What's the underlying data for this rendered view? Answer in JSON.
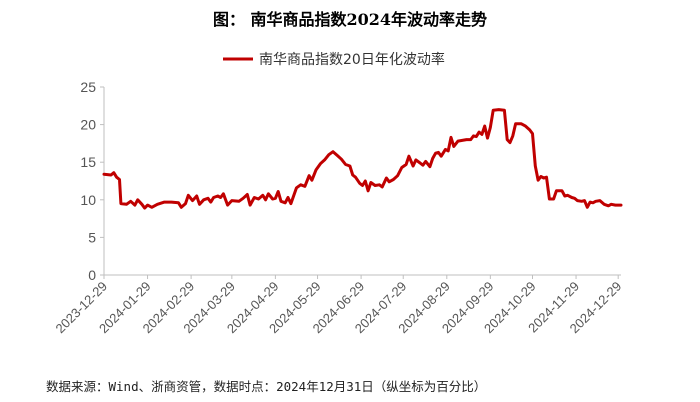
{
  "title": "图：  南华商品指数2024年波动率走势",
  "source": "数据来源：Wind、浙商资管，数据时点：2024年12月31日（纵坐标为百分比）",
  "colors": {
    "series": "#C00000",
    "axis": "#bfbfbf",
    "text": "#555555"
  },
  "chart_data": {
    "type": "line",
    "title": "",
    "xlabel": "",
    "ylabel": "",
    "ylim": [
      0,
      25
    ],
    "yticks": [
      0,
      5,
      10,
      15,
      20,
      25
    ],
    "grid": false,
    "legend_position": "top-center",
    "x_tick_labels": [
      "2023-12-29",
      "2024-01-29",
      "2024-02-29",
      "2024-03-29",
      "2024-04-29",
      "2024-05-29",
      "2024-06-29",
      "2024-07-29",
      "2024-08-29",
      "2024-09-29",
      "2024-10-29",
      "2024-11-29",
      "2024-12-29"
    ],
    "series": [
      {
        "name": "南华商品指数20日年化波动率",
        "color": "#C00000",
        "points": [
          [
            "2023-12-29",
            13.4
          ],
          [
            "2024-01-03",
            13.3
          ],
          [
            "2024-01-05",
            13.6
          ],
          [
            "2024-01-07",
            13.0
          ],
          [
            "2024-01-09",
            12.7
          ],
          [
            "2024-01-10",
            9.5
          ],
          [
            "2024-01-14",
            9.4
          ],
          [
            "2024-01-17",
            9.8
          ],
          [
            "2024-01-20",
            9.3
          ],
          [
            "2024-01-22",
            10.0
          ],
          [
            "2024-01-25",
            9.4
          ],
          [
            "2024-01-27",
            8.9
          ],
          [
            "2024-01-29",
            9.3
          ],
          [
            "2024-02-01",
            9.0
          ],
          [
            "2024-02-05",
            9.4
          ],
          [
            "2024-02-10",
            9.7
          ],
          [
            "2024-02-15",
            9.7
          ],
          [
            "2024-02-20",
            9.6
          ],
          [
            "2024-02-22",
            9.0
          ],
          [
            "2024-02-25",
            9.5
          ],
          [
            "2024-02-27",
            10.6
          ],
          [
            "2024-03-01",
            9.9
          ],
          [
            "2024-03-04",
            10.5
          ],
          [
            "2024-03-06",
            9.4
          ],
          [
            "2024-03-09",
            10.0
          ],
          [
            "2024-03-12",
            10.2
          ],
          [
            "2024-03-14",
            9.7
          ],
          [
            "2024-03-16",
            10.3
          ],
          [
            "2024-03-19",
            10.5
          ],
          [
            "2024-03-21",
            10.3
          ],
          [
            "2024-03-23",
            10.8
          ],
          [
            "2024-03-26",
            9.3
          ],
          [
            "2024-03-29",
            9.9
          ],
          [
            "2024-04-03",
            9.8
          ],
          [
            "2024-04-06",
            10.2
          ],
          [
            "2024-04-09",
            10.7
          ],
          [
            "2024-04-11",
            9.3
          ],
          [
            "2024-04-14",
            10.3
          ],
          [
            "2024-04-17",
            10.1
          ],
          [
            "2024-04-20",
            10.6
          ],
          [
            "2024-04-22",
            10.0
          ],
          [
            "2024-04-24",
            10.8
          ],
          [
            "2024-04-27",
            10.1
          ],
          [
            "2024-04-29",
            10.2
          ],
          [
            "2024-05-01",
            11.1
          ],
          [
            "2024-05-03",
            9.8
          ],
          [
            "2024-05-06",
            9.6
          ],
          [
            "2024-05-08",
            10.3
          ],
          [
            "2024-05-10",
            9.5
          ],
          [
            "2024-05-14",
            11.6
          ],
          [
            "2024-05-17",
            12.0
          ],
          [
            "2024-05-20",
            11.8
          ],
          [
            "2024-05-23",
            13.2
          ],
          [
            "2024-05-25",
            12.6
          ],
          [
            "2024-05-28",
            14.0
          ],
          [
            "2024-05-31",
            14.8
          ],
          [
            "2024-06-03",
            15.3
          ],
          [
            "2024-06-06",
            16.0
          ],
          [
            "2024-06-09",
            16.4
          ],
          [
            "2024-06-12",
            15.9
          ],
          [
            "2024-06-15",
            15.4
          ],
          [
            "2024-06-18",
            14.7
          ],
          [
            "2024-06-21",
            14.5
          ],
          [
            "2024-06-23",
            13.3
          ],
          [
            "2024-06-25",
            13.0
          ],
          [
            "2024-06-28",
            12.2
          ],
          [
            "2024-06-30",
            11.9
          ],
          [
            "2024-07-02",
            12.5
          ],
          [
            "2024-07-04",
            11.2
          ],
          [
            "2024-07-06",
            12.3
          ],
          [
            "2024-07-09",
            11.9
          ],
          [
            "2024-07-12",
            12.0
          ],
          [
            "2024-07-14",
            11.7
          ],
          [
            "2024-07-17",
            12.9
          ],
          [
            "2024-07-19",
            12.4
          ],
          [
            "2024-07-22",
            12.7
          ],
          [
            "2024-07-25",
            13.2
          ],
          [
            "2024-07-28",
            14.3
          ],
          [
            "2024-07-31",
            14.7
          ],
          [
            "2024-08-02",
            15.8
          ],
          [
            "2024-08-05",
            14.5
          ],
          [
            "2024-08-07",
            15.3
          ],
          [
            "2024-08-10",
            14.9
          ],
          [
            "2024-08-12",
            14.6
          ],
          [
            "2024-08-14",
            15.1
          ],
          [
            "2024-08-17",
            14.4
          ],
          [
            "2024-08-19",
            15.5
          ],
          [
            "2024-08-21",
            16.2
          ],
          [
            "2024-08-23",
            16.3
          ],
          [
            "2024-08-25",
            15.8
          ],
          [
            "2024-08-28",
            16.7
          ],
          [
            "2024-08-30",
            16.5
          ],
          [
            "2024-09-01",
            18.3
          ],
          [
            "2024-09-03",
            17.1
          ],
          [
            "2024-09-06",
            17.8
          ],
          [
            "2024-09-09",
            17.9
          ],
          [
            "2024-09-12",
            18.0
          ],
          [
            "2024-09-15",
            18.0
          ],
          [
            "2024-09-17",
            18.5
          ],
          [
            "2024-09-19",
            18.4
          ],
          [
            "2024-09-21",
            19.0
          ],
          [
            "2024-09-23",
            18.7
          ],
          [
            "2024-09-25",
            19.8
          ],
          [
            "2024-09-27",
            18.2
          ],
          [
            "2024-09-29",
            19.6
          ],
          [
            "2024-10-01",
            21.9
          ],
          [
            "2024-10-05",
            22.0
          ],
          [
            "2024-10-09",
            21.9
          ],
          [
            "2024-10-11",
            18.0
          ],
          [
            "2024-10-13",
            17.6
          ],
          [
            "2024-10-15",
            18.5
          ],
          [
            "2024-10-17",
            20.1
          ],
          [
            "2024-10-21",
            20.1
          ],
          [
            "2024-10-24",
            19.8
          ],
          [
            "2024-10-27",
            19.3
          ],
          [
            "2024-10-29",
            18.8
          ],
          [
            "2024-10-31",
            14.5
          ],
          [
            "2024-11-02",
            12.6
          ],
          [
            "2024-11-04",
            13.1
          ],
          [
            "2024-11-06",
            12.9
          ],
          [
            "2024-11-08",
            13.0
          ],
          [
            "2024-11-10",
            10.1
          ],
          [
            "2024-11-13",
            10.1
          ],
          [
            "2024-11-15",
            11.2
          ],
          [
            "2024-11-19",
            11.2
          ],
          [
            "2024-11-21",
            10.5
          ],
          [
            "2024-11-23",
            10.6
          ],
          [
            "2024-11-26",
            10.3
          ],
          [
            "2024-11-28",
            10.2
          ],
          [
            "2024-11-30",
            9.9
          ],
          [
            "2024-12-03",
            9.8
          ],
          [
            "2024-12-05",
            9.9
          ],
          [
            "2024-12-07",
            9.0
          ],
          [
            "2024-12-09",
            9.7
          ],
          [
            "2024-12-11",
            9.6
          ],
          [
            "2024-12-13",
            9.8
          ],
          [
            "2024-12-16",
            9.9
          ],
          [
            "2024-12-19",
            9.4
          ],
          [
            "2024-12-22",
            9.2
          ],
          [
            "2024-12-24",
            9.4
          ],
          [
            "2024-12-27",
            9.3
          ],
          [
            "2024-12-31",
            9.3
          ]
        ]
      }
    ]
  }
}
